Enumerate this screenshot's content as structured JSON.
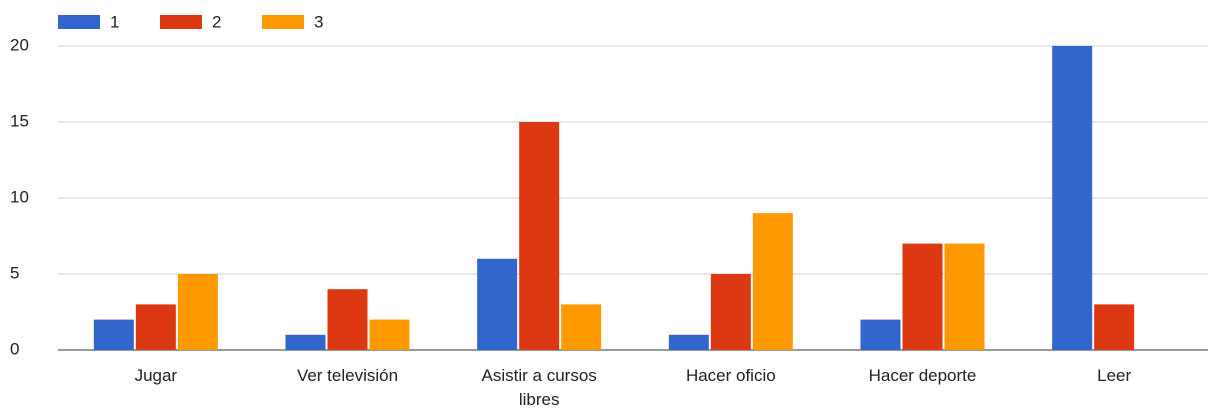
{
  "chart_data": {
    "type": "bar",
    "categories": [
      "Jugar",
      "Ver televisión",
      "Asistir a cursos libres",
      "Hacer oficio",
      "Hacer deporte",
      "Leer"
    ],
    "series": [
      {
        "name": "1",
        "color": "#3366cc",
        "values": [
          2,
          1,
          6,
          1,
          2,
          20
        ]
      },
      {
        "name": "2",
        "color": "#dc3912",
        "values": [
          3,
          4,
          15,
          5,
          7,
          3
        ]
      },
      {
        "name": "3",
        "color": "#ff9900",
        "values": [
          5,
          2,
          3,
          9,
          7,
          0
        ]
      }
    ],
    "ylim": [
      0,
      20
    ],
    "yticks": [
      0,
      5,
      10,
      15,
      20
    ],
    "grid": true,
    "legend": "top"
  }
}
